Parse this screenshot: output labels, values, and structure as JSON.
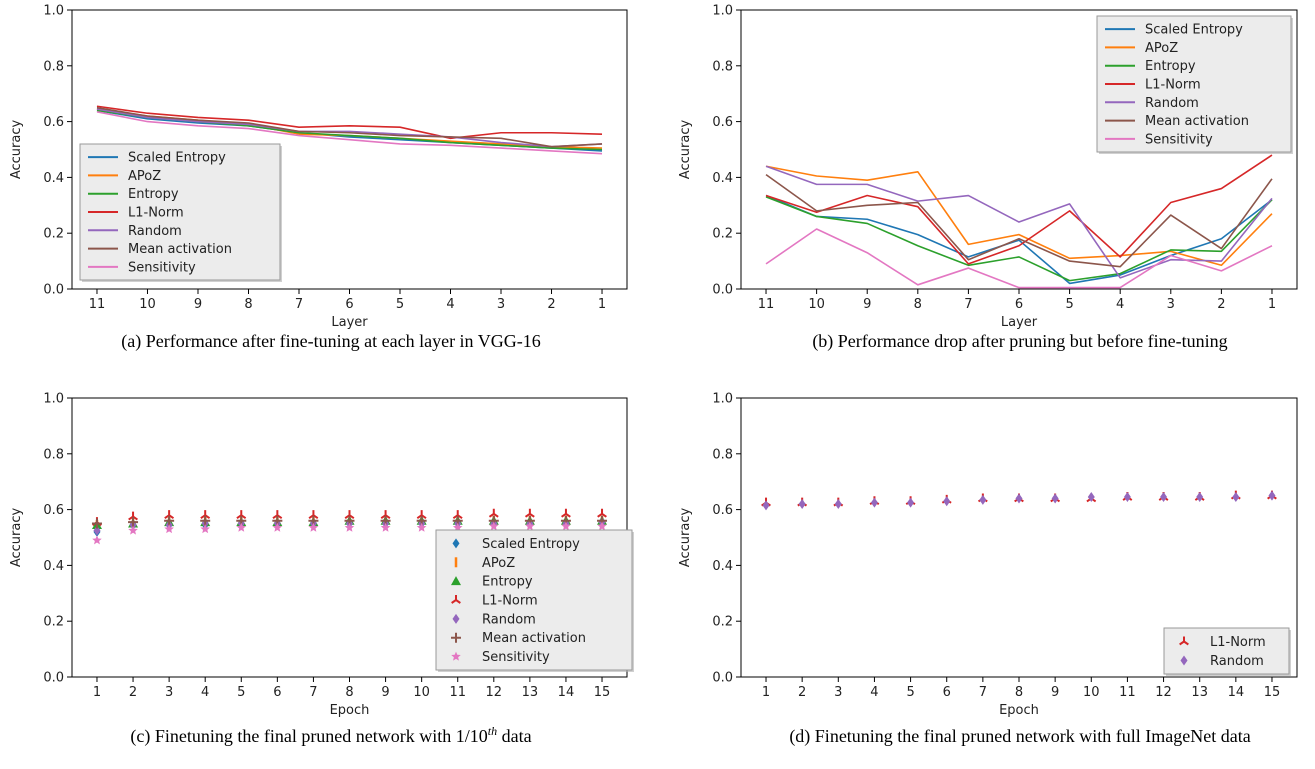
{
  "figure": {
    "colors": {
      "Scaled Entropy": "#1f77b4",
      "APoZ": "#ff7f0e",
      "Entropy": "#2ca02c",
      "L1-Norm": "#d62728",
      "Random": "#9467bd",
      "Mean activation": "#8c564b",
      "Sensitivity": "#e377c2"
    }
  },
  "chart_data": [
    {
      "id": "a",
      "type": "line",
      "caption": "(a) Performance after fine-tuning at each layer in VGG-16",
      "xlabel": "Layer",
      "ylabel": "Accuracy",
      "categories": [
        "11",
        "10",
        "9",
        "8",
        "7",
        "6",
        "5",
        "4",
        "3",
        "2",
        "1"
      ],
      "yticks": [
        "0.0",
        "0.2",
        "0.4",
        "0.6",
        "0.8",
        "1.0"
      ],
      "ylim": [
        0,
        1
      ],
      "legend_position": "lower-left",
      "series": [
        {
          "name": "Scaled Entropy",
          "values": [
            0.64,
            0.61,
            0.595,
            0.585,
            0.56,
            0.545,
            0.535,
            0.525,
            0.515,
            0.505,
            0.495
          ]
        },
        {
          "name": "APoZ",
          "values": [
            0.645,
            0.62,
            0.605,
            0.59,
            0.555,
            0.55,
            0.54,
            0.53,
            0.52,
            0.51,
            0.505
          ]
        },
        {
          "name": "Entropy",
          "values": [
            0.64,
            0.615,
            0.6,
            0.585,
            0.56,
            0.55,
            0.54,
            0.525,
            0.515,
            0.505,
            0.5
          ]
        },
        {
          "name": "L1-Norm",
          "values": [
            0.655,
            0.63,
            0.615,
            0.605,
            0.58,
            0.585,
            0.58,
            0.54,
            0.56,
            0.56,
            0.555
          ]
        },
        {
          "name": "Random",
          "values": [
            0.645,
            0.615,
            0.6,
            0.59,
            0.565,
            0.565,
            0.555,
            0.545,
            0.525,
            0.51,
            0.52
          ]
        },
        {
          "name": "Mean activation",
          "values": [
            0.65,
            0.62,
            0.605,
            0.595,
            0.565,
            0.56,
            0.55,
            0.545,
            0.54,
            0.51,
            0.52
          ]
        },
        {
          "name": "Sensitivity",
          "values": [
            0.635,
            0.6,
            0.585,
            0.575,
            0.55,
            0.535,
            0.52,
            0.515,
            0.505,
            0.495,
            0.485
          ]
        }
      ]
    },
    {
      "id": "b",
      "type": "line",
      "caption": "(b) Performance drop after pruning but before fine-tuning",
      "xlabel": "Layer",
      "ylabel": "Accuracy",
      "categories": [
        "11",
        "10",
        "9",
        "8",
        "7",
        "6",
        "5",
        "4",
        "3",
        "2",
        "1"
      ],
      "yticks": [
        "0.0",
        "0.2",
        "0.4",
        "0.6",
        "0.8",
        "1.0"
      ],
      "ylim": [
        0,
        1
      ],
      "legend_position": "upper-right",
      "series": [
        {
          "name": "Scaled Entropy",
          "values": [
            0.335,
            0.26,
            0.25,
            0.195,
            0.115,
            0.175,
            0.02,
            0.05,
            0.12,
            0.18,
            0.32
          ]
        },
        {
          "name": "APoZ",
          "values": [
            0.44,
            0.405,
            0.39,
            0.42,
            0.16,
            0.195,
            0.11,
            0.12,
            0.135,
            0.085,
            0.27
          ]
        },
        {
          "name": "Entropy",
          "values": [
            0.33,
            0.26,
            0.235,
            0.155,
            0.085,
            0.115,
            0.03,
            0.055,
            0.14,
            0.135,
            0.32
          ]
        },
        {
          "name": "L1-Norm",
          "values": [
            0.335,
            0.275,
            0.335,
            0.295,
            0.09,
            0.155,
            0.28,
            0.115,
            0.31,
            0.36,
            0.48
          ]
        },
        {
          "name": "Random",
          "values": [
            0.44,
            0.375,
            0.375,
            0.315,
            0.335,
            0.24,
            0.305,
            0.04,
            0.105,
            0.1,
            0.325
          ]
        },
        {
          "name": "Mean activation",
          "values": [
            0.41,
            0.28,
            0.3,
            0.31,
            0.105,
            0.18,
            0.1,
            0.08,
            0.265,
            0.145,
            0.395
          ]
        },
        {
          "name": "Sensitivity",
          "values": [
            0.09,
            0.215,
            0.13,
            0.015,
            0.075,
            0.005,
            0.005,
            0.005,
            0.12,
            0.065,
            0.155
          ]
        }
      ]
    },
    {
      "id": "c",
      "type": "scatter",
      "caption_prefix": "(c) Finetuning the final pruned network with 1/10",
      "caption_sup": "th",
      "caption_suffix": " data",
      "xlabel": "Epoch",
      "ylabel": "Accuracy",
      "categories": [
        "1",
        "2",
        "3",
        "4",
        "5",
        "6",
        "7",
        "8",
        "9",
        "10",
        "11",
        "12",
        "13",
        "14",
        "15"
      ],
      "yticks": [
        "0.0",
        "0.2",
        "0.4",
        "0.6",
        "0.8",
        "1.0"
      ],
      "ylim": [
        0,
        1
      ],
      "legend_position": "lower-right",
      "series": [
        {
          "name": "Scaled Entropy",
          "marker": "diamond",
          "values": [
            0.52,
            0.545,
            0.545,
            0.545,
            0.55,
            0.55,
            0.55,
            0.55,
            0.55,
            0.55,
            0.55,
            0.55,
            0.55,
            0.55,
            0.55
          ]
        },
        {
          "name": "APoZ",
          "marker": "vline",
          "values": [
            0.545,
            0.555,
            0.555,
            0.56,
            0.56,
            0.56,
            0.56,
            0.56,
            0.56,
            0.56,
            0.56,
            0.56,
            0.56,
            0.56,
            0.56
          ]
        },
        {
          "name": "Entropy",
          "marker": "triangle",
          "values": [
            0.545,
            0.55,
            0.555,
            0.555,
            0.555,
            0.555,
            0.555,
            0.56,
            0.56,
            0.56,
            0.56,
            0.56,
            0.56,
            0.56,
            0.56
          ]
        },
        {
          "name": "L1-Norm",
          "marker": "tri",
          "values": [
            0.555,
            0.575,
            0.58,
            0.58,
            0.58,
            0.58,
            0.58,
            0.58,
            0.58,
            0.58,
            0.58,
            0.585,
            0.585,
            0.585,
            0.585
          ]
        },
        {
          "name": "Random",
          "marker": "diamond",
          "values": [
            0.525,
            0.545,
            0.545,
            0.55,
            0.55,
            0.55,
            0.55,
            0.55,
            0.55,
            0.55,
            0.55,
            0.55,
            0.55,
            0.55,
            0.555
          ]
        },
        {
          "name": "Mean activation",
          "marker": "plus",
          "values": [
            0.55,
            0.555,
            0.56,
            0.56,
            0.56,
            0.56,
            0.56,
            0.56,
            0.56,
            0.56,
            0.56,
            0.56,
            0.56,
            0.56,
            0.56
          ]
        },
        {
          "name": "Sensitivity",
          "marker": "star",
          "values": [
            0.49,
            0.525,
            0.53,
            0.53,
            0.535,
            0.535,
            0.535,
            0.535,
            0.535,
            0.535,
            0.535,
            0.54,
            0.54,
            0.54,
            0.54
          ]
        }
      ]
    },
    {
      "id": "d",
      "type": "scatter",
      "caption": "(d) Finetuning the final pruned network with full ImageNet data",
      "xlabel": "Epoch",
      "ylabel": "Accuracy",
      "categories": [
        "1",
        "2",
        "3",
        "4",
        "5",
        "6",
        "7",
        "8",
        "9",
        "10",
        "11",
        "12",
        "13",
        "14",
        "15"
      ],
      "yticks": [
        "0.0",
        "0.2",
        "0.4",
        "0.6",
        "0.8",
        "1.0"
      ],
      "ylim": [
        0,
        1
      ],
      "legend_position": "lower-right",
      "series": [
        {
          "name": "L1-Norm",
          "marker": "tri",
          "values": [
            0.625,
            0.625,
            0.625,
            0.63,
            0.63,
            0.635,
            0.64,
            0.64,
            0.64,
            0.64,
            0.645,
            0.645,
            0.645,
            0.65,
            0.65
          ]
        },
        {
          "name": "Random",
          "marker": "diamond",
          "values": [
            0.615,
            0.62,
            0.62,
            0.625,
            0.625,
            0.63,
            0.635,
            0.64,
            0.64,
            0.645,
            0.645,
            0.645,
            0.645,
            0.645,
            0.65
          ]
        }
      ]
    }
  ]
}
